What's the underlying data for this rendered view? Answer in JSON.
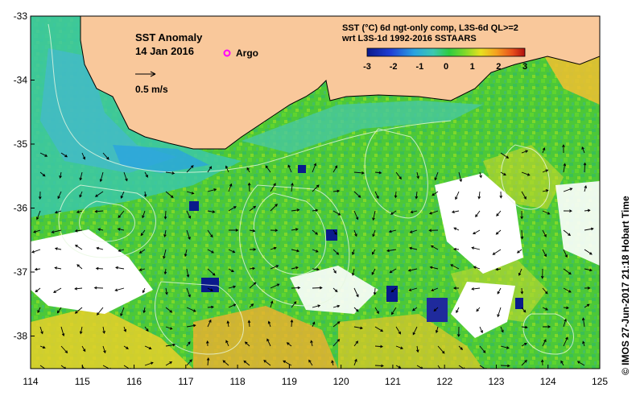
{
  "map": {
    "title": "SST Anomaly",
    "date": "14 Jan 2016",
    "argo_label": "Argo",
    "vector_scale_label": "0.5 m/s",
    "product_line1": "SST (°C) 6d ngt-only comp, L3S-6d QL>=2",
    "product_line2": "wrt L3S-1d 1992-2016 SSTAARS",
    "credit": "© IMOS 27-Jun-2017 21:18 Hobart Time",
    "x_ticks": [
      "114",
      "115",
      "116",
      "117",
      "118",
      "119",
      "120",
      "121",
      "122",
      "123",
      "124",
      "125"
    ],
    "y_ticks": [
      "-33",
      "-34",
      "-35",
      "-36",
      "-37",
      "-38"
    ],
    "colorbar_ticks": [
      "-3",
      "-2",
      "-1",
      "0",
      "1",
      "2",
      "3"
    ],
    "colors": {
      "land": "#f9c89b",
      "argo_marker": "#ff00ff",
      "colorbar": [
        "#0a1a8c",
        "#1f3fd6",
        "#2aa3e0",
        "#3cc8b0",
        "#2ecc40",
        "#7fd92a",
        "#e8e020",
        "#f5a020",
        "#e8501c",
        "#b01010"
      ]
    }
  }
}
